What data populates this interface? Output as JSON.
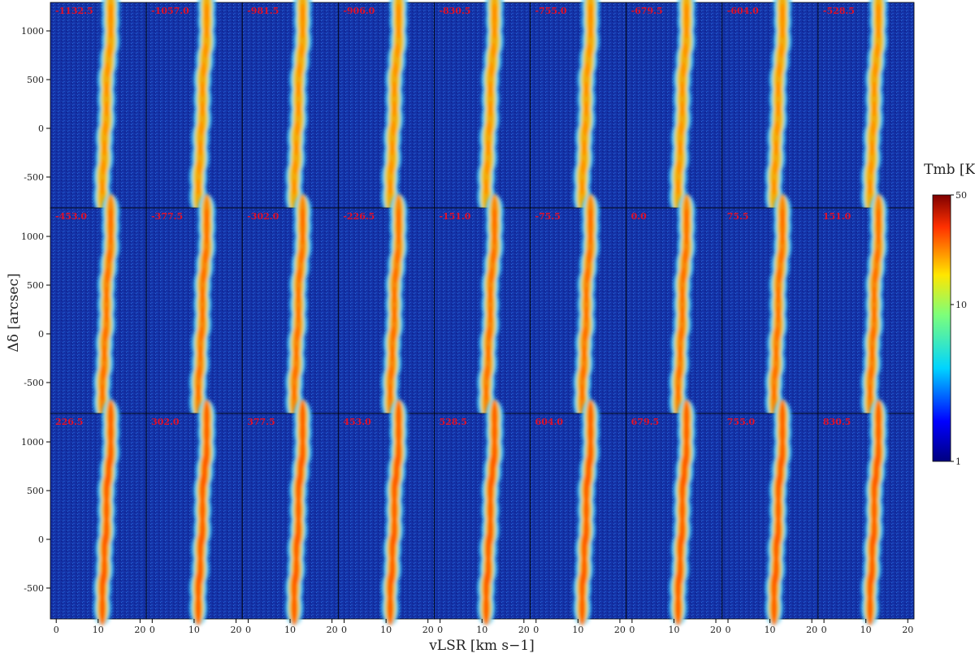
{
  "chart_data": {
    "type": "heatmap",
    "xlabel": "vLSR [km s−1]",
    "ylabel": "Δδ [arcsec]",
    "colorbar_label": "Tmb [K]",
    "panel_titles": [
      "-1132.5",
      "-1057.0",
      "-981.5",
      "-906.0",
      "-830.5",
      "-755.0",
      "-679.5",
      "-604.0",
      "-528.5",
      "-453.0",
      "-377.5",
      "-302.0",
      "-226.5",
      "-151.0",
      "-75.5",
      "0.0",
      "75.5",
      "151.0",
      "226.5",
      "302.0",
      "377.5",
      "453.0",
      "528.5",
      "604.0",
      "679.5",
      "755.0",
      "830.5"
    ],
    "columns": 9,
    "xlim": [
      -1.4,
      21.5
    ],
    "xticks": [
      0,
      10,
      20
    ],
    "ylim": [
      -817,
      1292
    ],
    "yticks": [
      -500,
      0,
      500,
      1000
    ],
    "clim": [
      1,
      50
    ],
    "cticks": [
      1,
      10,
      50
    ],
    "color_scale": "log",
    "colormap": "jet",
    "ridge": {
      "dec": [
        -700,
        -500,
        -300,
        -100,
        100,
        300,
        500,
        700,
        900,
        1100,
        1250
      ],
      "v": [
        11,
        11,
        11.5,
        11.5,
        12,
        12,
        12,
        12.5,
        13,
        13,
        13
      ]
    }
  }
}
